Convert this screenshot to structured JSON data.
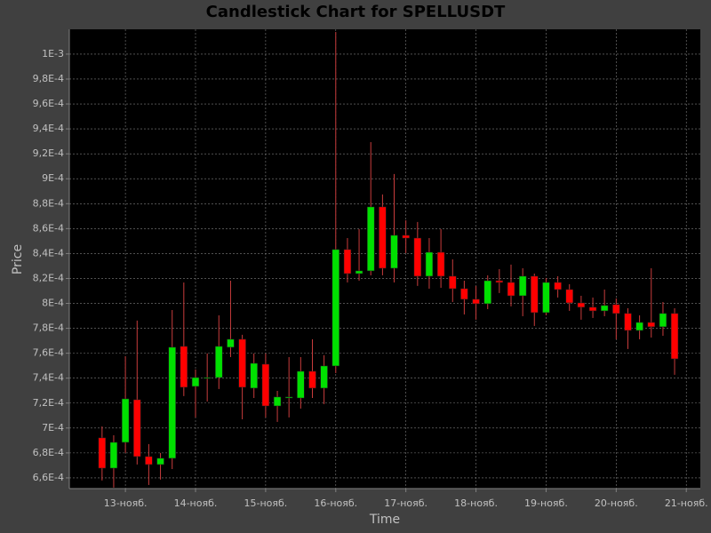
{
  "chart_data": {
    "type": "candlestick",
    "title": "Candlestick Chart for SPELLUSDT",
    "xlabel": "Time",
    "ylabel": "Price",
    "up_color": "#00e000",
    "down_color": "#ff0000",
    "wick_color": "#c83c3c",
    "grid": true,
    "xlim": [
      12.2,
      21.2
    ],
    "ylim": [
      0.0006514,
      0.0010199
    ],
    "xticks": [
      {
        "value": 13,
        "label": "13-нояб."
      },
      {
        "value": 14,
        "label": "14-нояб."
      },
      {
        "value": 15,
        "label": "15-нояб."
      },
      {
        "value": 16,
        "label": "16-нояб."
      },
      {
        "value": 17,
        "label": "17-нояб."
      },
      {
        "value": 18,
        "label": "18-нояб."
      },
      {
        "value": 19,
        "label": "19-нояб."
      },
      {
        "value": 20,
        "label": "20-нояб."
      },
      {
        "value": 21,
        "label": "21-нояб."
      }
    ],
    "yticks": [
      {
        "value": 0.00066,
        "label": "6,6E-4"
      },
      {
        "value": 0.00068,
        "label": "6,8E-4"
      },
      {
        "value": 0.0007,
        "label": "7E-4"
      },
      {
        "value": 0.00072,
        "label": "7,2E-4"
      },
      {
        "value": 0.00074,
        "label": "7,4E-4"
      },
      {
        "value": 0.00076,
        "label": "7,6E-4"
      },
      {
        "value": 0.00078,
        "label": "7,8E-4"
      },
      {
        "value": 0.0008,
        "label": "8E-4"
      },
      {
        "value": 0.00082,
        "label": "8,2E-4"
      },
      {
        "value": 0.00084,
        "label": "8,4E-4"
      },
      {
        "value": 0.00086,
        "label": "8,6E-4"
      },
      {
        "value": 0.00088,
        "label": "8,8E-4"
      },
      {
        "value": 0.0009,
        "label": "9E-4"
      },
      {
        "value": 0.00092,
        "label": "9,2E-4"
      },
      {
        "value": 0.00094,
        "label": "9,4E-4"
      },
      {
        "value": 0.00096,
        "label": "9,6E-4"
      },
      {
        "value": 0.00098,
        "label": "9,8E-4"
      },
      {
        "value": 0.001,
        "label": "1E-3"
      }
    ],
    "x": [
      12.667,
      12.833,
      13,
      13.167,
      13.333,
      13.5,
      13.667,
      13.833,
      14,
      14.167,
      14.333,
      14.5,
      14.667,
      14.833,
      15,
      15.167,
      15.333,
      15.5,
      15.667,
      15.833,
      16,
      16.167,
      16.333,
      16.5,
      16.667,
      16.833,
      17,
      17.167,
      17.333,
      17.5,
      17.667,
      17.833,
      18,
      18.167,
      18.333,
      18.5,
      18.667,
      18.833,
      19,
      19.167,
      19.333,
      19.5,
      19.667,
      19.833,
      20,
      20.167,
      20.333,
      20.5,
      20.667,
      20.833
    ],
    "open": [
      0.0006921,
      0.0006678,
      0.0006885,
      0.0007227,
      0.0006771,
      0.0006707,
      0.0006757,
      0.0007655,
      0.0007334,
      0.0007398,
      0.0007405,
      0.0007648,
      0.0007712,
      0.000732,
      0.0007512,
      0.0007177,
      0.0007241,
      0.0007241,
      0.0007455,
      0.000732,
      0.0007498,
      0.0008432,
      0.0008239,
      0.0008261,
      0.0008774,
      0.0008282,
      0.0008546,
      0.0008524,
      0.0008218,
      0.000841,
      0.0008218,
      0.0008118,
      0.0008033,
      0.0007997,
      0.0008182,
      0.0008168,
      0.0008061,
      0.0008218,
      0.0007926,
      0.0008168,
      0.0008111,
      0.0008004,
      0.0007969,
      0.000794,
      0.000799,
      0.0007919,
      0.0007783,
      0.0007847,
      0.0007812,
      0.0007919
    ],
    "high": [
      0.0007013,
      0.0006942,
      0.0007576,
      0.0007862,
      0.0006871,
      0.00068,
      0.0007947,
      0.0008168,
      0.000747,
      0.0007598,
      0.0007904,
      0.0008182,
      0.0007748,
      0.0007598,
      0.0007598,
      0.0007298,
      0.0007569,
      0.0007569,
      0.0007712,
      0.0007584,
      0.0010178,
      0.0008524,
      0.0008596,
      0.0009294,
      0.0008874,
      0.0009038,
      0.0008667,
      0.0008653,
      0.0008524,
      0.0008596,
      0.0008353,
      0.0008182,
      0.000814,
      0.0008225,
      0.0008275,
      0.0008311,
      0.0008282,
      0.0008239,
      0.0008204,
      0.0008218,
      0.0008154,
      0.0008061,
      0.0008047,
      0.0008111,
      0.000804,
      0.0007961,
      0.0007904,
      0.0008282,
      0.0008011,
      0.0007961
    ],
    "low": [
      0.0006579,
      0.0006522,
      0.00068,
      0.0006707,
      0.0006543,
      0.0006586,
      0.0006671,
      0.0007256,
      0.0007085,
      0.0007213,
      0.0007313,
      0.0007569,
      0.000707,
      0.0007241,
      0.0007085,
      0.0007049,
      0.0007085,
      0.0007156,
      0.0007241,
      0.0007192,
      0.0007441,
      0.0008168,
      0.0008182,
      0.0008225,
      0.0008225,
      0.0008168,
      0.0008403,
      0.000814,
      0.0008118,
      0.0008125,
      0.0008011,
      0.0007911,
      0.0007869,
      0.0007954,
      0.0008083,
      0.0007976,
      0.0007897,
      0.0007819,
      0.0007904,
      0.0008047,
      0.000794,
      0.0007869,
      0.0007883,
      0.0007897,
      0.0007712,
      0.0007634,
      0.0007712,
      0.0007726,
      0.000774,
      0.0007427
    ],
    "close": [
      0.0006678,
      0.0006885,
      0.0007234,
      0.0006771,
      0.0006707,
      0.0006757,
      0.0007648,
      0.0007327,
      0.0007405,
      0.0007405,
      0.0007655,
      0.0007712,
      0.0007327,
      0.0007519,
      0.0007177,
      0.0007249,
      0.0007249,
      0.0007455,
      0.000732,
      0.0007498,
      0.0008432,
      0.0008239,
      0.0008261,
      0.0008774,
      0.0008282,
      0.0008546,
      0.0008524,
      0.0008218,
      0.000841,
      0.0008218,
      0.0008118,
      0.0008033,
      0.0007997,
      0.0008182,
      0.0008168,
      0.0008061,
      0.0008218,
      0.0007926,
      0.0008168,
      0.0008111,
      0.0008004,
      0.0007969,
      0.000794,
      0.0007983,
      0.0007919,
      0.0007783,
      0.0007847,
      0.0007812,
      0.0007919,
      0.0007555
    ]
  }
}
